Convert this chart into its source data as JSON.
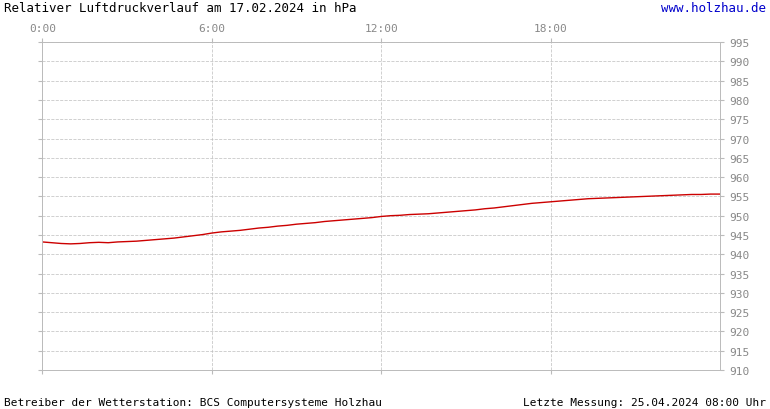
{
  "title": "Relativer Luftdruckverlauf am 17.02.2024 in hPa",
  "url_text": "www.holzhau.de",
  "footer_left": "Betreiber der Wetterstation: BCS Computersysteme Holzhau",
  "footer_right": "Letzte Messung: 25.04.2024 08:00 Uhr",
  "x_ticks_labels": [
    "0:00",
    "6:00",
    "12:00",
    "18:00"
  ],
  "x_ticks_positions": [
    0,
    360,
    720,
    1080
  ],
  "x_max": 1440,
  "y_min": 910,
  "y_max": 995,
  "y_step": 5,
  "line_color": "#cc0000",
  "background_color": "#ffffff",
  "grid_color": "#bbbbbb",
  "title_color": "#000000",
  "url_color": "#0000cc",
  "footer_color": "#000000",
  "tick_label_color": "#888888",
  "pressure_data": [
    [
      0,
      943.2
    ],
    [
      20,
      943.0
    ],
    [
      40,
      942.8
    ],
    [
      60,
      942.7
    ],
    [
      80,
      942.8
    ],
    [
      100,
      943.0
    ],
    [
      120,
      943.1
    ],
    [
      140,
      943.0
    ],
    [
      160,
      943.2
    ],
    [
      180,
      943.3
    ],
    [
      200,
      943.4
    ],
    [
      220,
      943.6
    ],
    [
      240,
      943.8
    ],
    [
      260,
      944.0
    ],
    [
      280,
      944.2
    ],
    [
      300,
      944.5
    ],
    [
      320,
      944.8
    ],
    [
      340,
      945.1
    ],
    [
      360,
      945.5
    ],
    [
      380,
      945.8
    ],
    [
      400,
      946.0
    ],
    [
      420,
      946.2
    ],
    [
      440,
      946.5
    ],
    [
      460,
      946.8
    ],
    [
      480,
      947.0
    ],
    [
      500,
      947.3
    ],
    [
      520,
      947.5
    ],
    [
      540,
      947.8
    ],
    [
      560,
      948.0
    ],
    [
      580,
      948.2
    ],
    [
      600,
      948.5
    ],
    [
      620,
      948.7
    ],
    [
      640,
      948.9
    ],
    [
      660,
      949.1
    ],
    [
      680,
      949.3
    ],
    [
      700,
      949.5
    ],
    [
      720,
      949.8
    ],
    [
      740,
      950.0
    ],
    [
      760,
      950.1
    ],
    [
      780,
      950.3
    ],
    [
      800,
      950.4
    ],
    [
      820,
      950.5
    ],
    [
      840,
      950.7
    ],
    [
      860,
      950.9
    ],
    [
      880,
      951.1
    ],
    [
      900,
      951.3
    ],
    [
      920,
      951.5
    ],
    [
      940,
      951.8
    ],
    [
      960,
      952.0
    ],
    [
      980,
      952.3
    ],
    [
      1000,
      952.6
    ],
    [
      1020,
      952.9
    ],
    [
      1040,
      953.2
    ],
    [
      1060,
      953.4
    ],
    [
      1080,
      953.6
    ],
    [
      1100,
      953.8
    ],
    [
      1120,
      954.0
    ],
    [
      1140,
      954.2
    ],
    [
      1160,
      954.4
    ],
    [
      1180,
      954.5
    ],
    [
      1200,
      954.6
    ],
    [
      1220,
      954.7
    ],
    [
      1240,
      954.8
    ],
    [
      1260,
      954.9
    ],
    [
      1280,
      955.0
    ],
    [
      1300,
      955.1
    ],
    [
      1320,
      955.2
    ],
    [
      1340,
      955.3
    ],
    [
      1360,
      955.4
    ],
    [
      1380,
      955.5
    ],
    [
      1400,
      955.5
    ],
    [
      1420,
      955.6
    ],
    [
      1440,
      955.6
    ]
  ]
}
